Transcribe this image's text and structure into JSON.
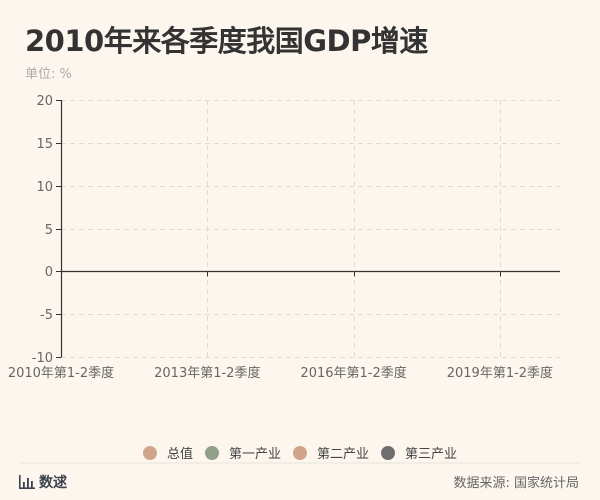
{
  "title": "2010年来各季度我国GDP增速",
  "unit_label": "单位: %",
  "legend": [
    {
      "label": "总值",
      "color": "#d0a48a"
    },
    {
      "label": "第一产业",
      "color": "#939f8b"
    },
    {
      "label": "第二产业",
      "color": "#d0a48a"
    },
    {
      "label": "第三产业",
      "color": "#6e6e6e"
    }
  ],
  "footer": {
    "brand": "数逑",
    "source": "数据来源: 国家统计局"
  },
  "chart_data": {
    "type": "line",
    "title": "2010年来各季度我国GDP增速",
    "ylabel": "单位: %",
    "xlabel": "",
    "ylim": [
      -10,
      20
    ],
    "yticks": [
      20,
      15,
      10,
      5,
      0,
      -5,
      -10
    ],
    "categories": [
      "2010年第1-2季度",
      "2013年第1-2季度",
      "2016年第1-2季度",
      "2019年第1-2季度"
    ],
    "grid": true,
    "legend_position": "bottom",
    "series": [
      {
        "name": "总值",
        "values": []
      },
      {
        "name": "第一产业",
        "values": []
      },
      {
        "name": "第二产业",
        "values": []
      },
      {
        "name": "第三产业",
        "values": []
      }
    ]
  }
}
